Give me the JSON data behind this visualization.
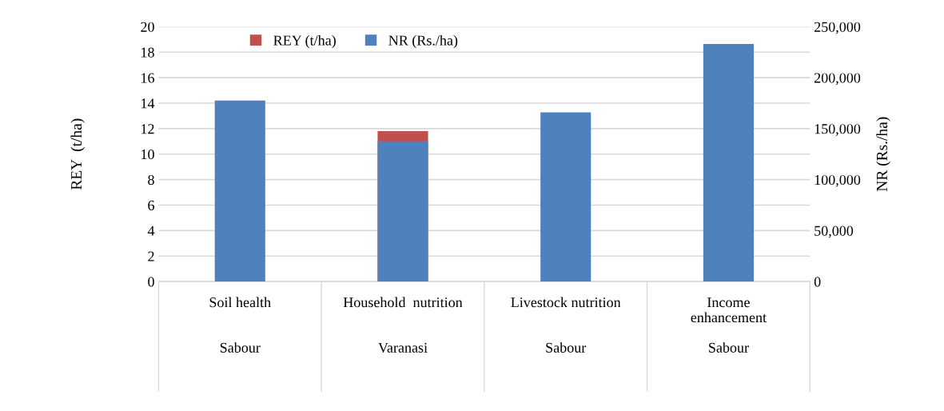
{
  "chart_data": {
    "type": "bar",
    "ylabel": "REY  (t/ha)",
    "y2label": "NR (Rs./ha)",
    "categories": [
      "Soil health\n\n\nSabour",
      "Household  nutrition\n\n\nVaranasi",
      "Livestock nutrition\n\n\nSabour",
      "Income\nenhancement\n\nSabour"
    ],
    "series": [
      {
        "name": "REY (t/ha)",
        "color": "#c0504d",
        "values": [
          null,
          11.8,
          null,
          null
        ]
      },
      {
        "name": "NR (Rs./ha)",
        "color": "#4f81bd",
        "axis": "y2",
        "values": [
          177500,
          137500,
          166000,
          233000
        ]
      }
    ],
    "ylim": [
      0,
      20
    ],
    "yticks": [
      0,
      2,
      4,
      6,
      8,
      10,
      12,
      14,
      16,
      18,
      20
    ],
    "y2lim": [
      0,
      250000
    ],
    "y2ticks": [
      0,
      {
        "value": 50000,
        "label": "50,000"
      },
      {
        "value": 100000,
        "label": "100,000"
      },
      {
        "value": 150000,
        "label": "150,000"
      },
      {
        "value": 200000,
        "label": "200,000"
      },
      {
        "value": 250000,
        "label": "250,000"
      }
    ],
    "grid": "y",
    "legend": "top"
  }
}
